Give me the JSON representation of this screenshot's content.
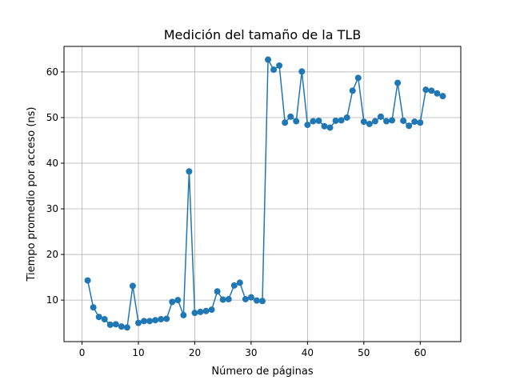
{
  "chart_data": {
    "type": "line",
    "title": "Medición del tamaño de la TLB",
    "xlabel": "Número de páginas",
    "ylabel": "Tiempo promedio por acceso (ns)",
    "xlim": [
      -3.2,
      67.2
    ],
    "ylim": [
      0.9,
      65.6
    ],
    "xticks": [
      0,
      10,
      20,
      30,
      40,
      50,
      60
    ],
    "yticks": [
      10,
      20,
      30,
      40,
      50,
      60
    ],
    "grid": true,
    "series_color": "#1f77b4",
    "x": [
      1,
      2,
      3,
      4,
      5,
      6,
      7,
      8,
      9,
      10,
      11,
      12,
      13,
      14,
      15,
      16,
      17,
      18,
      19,
      20,
      21,
      22,
      23,
      24,
      25,
      26,
      27,
      28,
      29,
      30,
      31,
      32,
      33,
      34,
      35,
      36,
      37,
      38,
      39,
      40,
      41,
      42,
      43,
      44,
      45,
      46,
      47,
      48,
      49,
      50,
      51,
      52,
      53,
      54,
      55,
      56,
      57,
      58,
      59,
      60,
      61,
      62,
      63,
      64
    ],
    "y": [
      14.3,
      8.4,
      6.3,
      5.8,
      4.6,
      4.7,
      4.2,
      4.0,
      13.1,
      5.0,
      5.4,
      5.4,
      5.6,
      5.8,
      5.9,
      9.6,
      10.0,
      6.7,
      38.2,
      7.2,
      7.4,
      7.6,
      7.9,
      11.9,
      10.1,
      10.2,
      13.2,
      13.8,
      10.2,
      10.6,
      9.9,
      9.8,
      62.7,
      60.5,
      61.4,
      48.9,
      50.2,
      49.2,
      60.1,
      48.4,
      49.2,
      49.3,
      48.1,
      47.8,
      49.3,
      49.4,
      50.0,
      55.9,
      58.7,
      49.1,
      48.6,
      49.2,
      50.2,
      49.2,
      49.4,
      57.6,
      49.3,
      48.2,
      49.1,
      48.9,
      56.1,
      55.9,
      55.3,
      54.7
    ]
  }
}
